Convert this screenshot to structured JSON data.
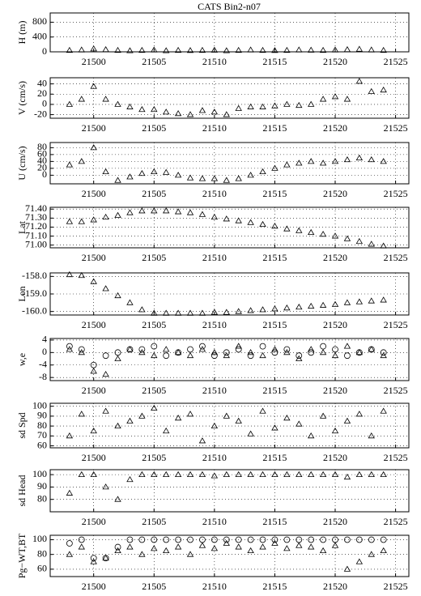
{
  "title": "CATS Bin2-n07",
  "chart_data": [
    {
      "type": "scatter",
      "ylabel": "H (m)",
      "xlim": [
        21496.4,
        21526.1
      ],
      "xticks": [
        21500,
        21505,
        21510,
        21515,
        21520,
        21525
      ],
      "ylim": [
        0,
        1050
      ],
      "yticks": [
        0,
        400,
        800
      ],
      "grid": true,
      "x": [
        21498,
        21499,
        21500,
        21501,
        21502,
        21503,
        21504,
        21505,
        21506,
        21507,
        21508,
        21509,
        21510,
        21511,
        21512,
        21513,
        21514,
        21515,
        21516,
        21517,
        21518,
        21519,
        21520,
        21521,
        21522,
        21523,
        21524
      ],
      "series": [
        {
          "marker": "triangle",
          "color": "#000000",
          "values": [
            40,
            50,
            80,
            60,
            40,
            30,
            40,
            50,
            30,
            40,
            35,
            40,
            45,
            30,
            40,
            50,
            40,
            35,
            40,
            50,
            45,
            40,
            50,
            60,
            70,
            50,
            40
          ]
        }
      ]
    },
    {
      "type": "scatter",
      "ylabel": "V (cm/s)",
      "xlim": [
        21496.4,
        21526.1
      ],
      "xticks": [
        21500,
        21505,
        21510,
        21515,
        21520,
        21525
      ],
      "ylim": [
        -27,
        52
      ],
      "yticks": [
        -20,
        0,
        20,
        40
      ],
      "grid": true,
      "x": [
        21498,
        21499,
        21500,
        21501,
        21502,
        21503,
        21504,
        21505,
        21506,
        21507,
        21508,
        21509,
        21510,
        21511,
        21512,
        21513,
        21514,
        21515,
        21516,
        21517,
        21518,
        21519,
        21520,
        21521,
        21522,
        21523,
        21524
      ],
      "series": [
        {
          "marker": "triangle",
          "color": "#000000",
          "values": [
            0,
            10,
            35,
            10,
            0,
            -5,
            -10,
            -10,
            -15,
            -18,
            -20,
            -12,
            -15,
            -20,
            -8,
            -5,
            -5,
            -3,
            0,
            -2,
            0,
            10,
            15,
            10,
            45,
            25,
            28
          ]
        }
      ]
    },
    {
      "type": "scatter",
      "ylabel": "U (cm/s)",
      "xlim": [
        21496.4,
        21526.1
      ],
      "xticks": [
        21500,
        21505,
        21510,
        21515,
        21520,
        21525
      ],
      "ylim": [
        -25,
        95
      ],
      "yticks": [
        0,
        20,
        40,
        60,
        80
      ],
      "grid": true,
      "x": [
        21498,
        21499,
        21500,
        21501,
        21502,
        21503,
        21504,
        21505,
        21506,
        21507,
        21508,
        21509,
        21510,
        21511,
        21512,
        21513,
        21514,
        21515,
        21516,
        21517,
        21518,
        21519,
        21520,
        21521,
        21522,
        21523,
        21524
      ],
      "series": [
        {
          "marker": "triangle",
          "color": "#000000",
          "values": [
            30,
            40,
            80,
            10,
            -15,
            -5,
            5,
            10,
            8,
            0,
            -8,
            -10,
            -10,
            -15,
            -10,
            0,
            10,
            20,
            30,
            35,
            40,
            35,
            40,
            45,
            50,
            45,
            40
          ]
        }
      ]
    },
    {
      "type": "scatter",
      "ylabel": "Lat",
      "xlim": [
        21496.4,
        21526.1
      ],
      "xticks": [
        21500,
        21505,
        21510,
        21515,
        21520,
        21525
      ],
      "ylim": [
        70.97,
        71.42
      ],
      "yticks": [
        {
          "value": 71,
          "label": "71.00"
        },
        {
          "value": 71.1,
          "label": "71.10"
        },
        {
          "value": 71.2,
          "label": "71.20"
        },
        {
          "value": 71.3,
          "label": "71.30"
        },
        {
          "value": 71.4,
          "label": "71.40"
        }
      ],
      "grid": true,
      "x": [
        21498,
        21499,
        21500,
        21501,
        21502,
        21503,
        21504,
        21505,
        21506,
        21507,
        21508,
        21509,
        21510,
        21511,
        21512,
        21513,
        21514,
        21515,
        21516,
        21517,
        21518,
        21519,
        21520,
        21521,
        21522,
        21523,
        21524
      ],
      "series": [
        {
          "marker": "triangle",
          "color": "#000000",
          "values": [
            71.26,
            71.26,
            71.28,
            71.31,
            71.33,
            71.36,
            71.38,
            71.38,
            71.38,
            71.37,
            71.36,
            71.34,
            71.31,
            71.29,
            71.27,
            71.25,
            71.23,
            71.21,
            71.18,
            71.16,
            71.14,
            71.12,
            71.1,
            71.07,
            71.04,
            71.01,
            70.99
          ]
        }
      ]
    },
    {
      "type": "scatter",
      "ylabel": "Lon",
      "xlim": [
        21496.4,
        21526.1
      ],
      "xticks": [
        21500,
        21505,
        21510,
        21515,
        21520,
        21525
      ],
      "ylim": [
        -160.2,
        -157.8
      ],
      "yticks": [
        {
          "value": -160,
          "label": "-160.0"
        },
        {
          "value": -159,
          "label": "-159.0"
        },
        {
          "value": -158,
          "label": "-158.0"
        }
      ],
      "grid": true,
      "x": [
        21498,
        21499,
        21500,
        21501,
        21502,
        21503,
        21504,
        21505,
        21506,
        21507,
        21508,
        21509,
        21510,
        21511,
        21512,
        21513,
        21514,
        21515,
        21516,
        21517,
        21518,
        21519,
        21520,
        21521,
        21522,
        21523,
        21524
      ],
      "series": [
        {
          "marker": "triangle",
          "color": "#000000",
          "values": [
            -157.9,
            -157.95,
            -158.3,
            -158.7,
            -159.1,
            -159.5,
            -159.9,
            -160.1,
            -160.1,
            -160.1,
            -160.1,
            -160.1,
            -160.05,
            -160.05,
            -160,
            -159.95,
            -159.9,
            -159.85,
            -159.8,
            -159.75,
            -159.7,
            -159.65,
            -159.6,
            -159.5,
            -159.45,
            -159.4,
            -159.35
          ]
        }
      ]
    },
    {
      "type": "scatter",
      "ylabel": "w,e",
      "xlim": [
        21496.4,
        21526.1
      ],
      "xticks": [
        21500,
        21505,
        21510,
        21515,
        21520,
        21525
      ],
      "ylim": [
        -9,
        4.5
      ],
      "yticks": [
        -8,
        -4,
        0,
        4
      ],
      "grid": true,
      "x": [
        21498,
        21499,
        21500,
        21501,
        21502,
        21503,
        21504,
        21505,
        21506,
        21507,
        21508,
        21509,
        21510,
        21511,
        21512,
        21513,
        21514,
        21515,
        21516,
        21517,
        21518,
        21519,
        21520,
        21521,
        21522,
        21523,
        21524
      ],
      "series": [
        {
          "marker": "triangle",
          "color": "#000000",
          "values": [
            1,
            0,
            -6,
            -7,
            -2,
            1,
            0,
            -1,
            1,
            0,
            -1,
            1,
            0,
            -1,
            2,
            0,
            -1,
            1,
            0,
            -2,
            1,
            0,
            -1,
            2,
            0,
            1,
            -1
          ]
        },
        {
          "marker": "circle",
          "color": "#000000",
          "values": [
            2,
            1,
            -4,
            -1,
            0,
            1,
            1,
            2,
            -1,
            0,
            1,
            2,
            -1,
            0,
            1,
            -1,
            2,
            0,
            1,
            -1,
            0,
            2,
            1,
            -1,
            0,
            1,
            0
          ]
        }
      ]
    },
    {
      "type": "scatter",
      "ylabel": "sd Spd",
      "xlim": [
        21496.4,
        21526.1
      ],
      "xticks": [
        21500,
        21505,
        21510,
        21515,
        21520,
        21525
      ],
      "ylim": [
        58,
        103
      ],
      "yticks": [
        60,
        70,
        80,
        90,
        100
      ],
      "grid": true,
      "x": [
        21498,
        21499,
        21500,
        21501,
        21502,
        21503,
        21504,
        21505,
        21506,
        21507,
        21508,
        21509,
        21510,
        21511,
        21512,
        21513,
        21514,
        21515,
        21516,
        21517,
        21518,
        21519,
        21520,
        21521,
        21522,
        21523,
        21524
      ],
      "series": [
        {
          "marker": "triangle",
          "color": "#000000",
          "values": [
            70,
            92,
            75,
            95,
            80,
            85,
            90,
            98,
            75,
            88,
            92,
            65,
            80,
            90,
            85,
            72,
            95,
            78,
            88,
            82,
            70,
            90,
            75,
            85,
            92,
            70,
            95
          ]
        }
      ]
    },
    {
      "type": "scatter",
      "ylabel": "sd Head",
      "xlim": [
        21496.4,
        21526.1
      ],
      "xticks": [
        21500,
        21505,
        21510,
        21515,
        21520,
        21525
      ],
      "ylim": [
        70,
        104
      ],
      "yticks": [
        80,
        90,
        100
      ],
      "grid": true,
      "x": [
        21498,
        21499,
        21500,
        21501,
        21502,
        21503,
        21504,
        21505,
        21506,
        21507,
        21508,
        21509,
        21510,
        21511,
        21512,
        21513,
        21514,
        21515,
        21516,
        21517,
        21518,
        21519,
        21520,
        21521,
        21522,
        21523,
        21524
      ],
      "series": [
        {
          "marker": "triangle",
          "color": "#000000",
          "values": [
            85,
            100,
            100,
            90,
            80,
            96,
            100,
            100,
            100,
            100,
            100,
            100,
            99,
            100,
            100,
            100,
            100,
            100,
            100,
            100,
            100,
            100,
            100,
            98,
            100,
            100,
            100
          ]
        }
      ]
    },
    {
      "type": "scatter",
      "ylabel": "Pg−WT,BT",
      "xlim": [
        21496.4,
        21526.1
      ],
      "xticks": [
        21500,
        21505,
        21510,
        21515,
        21520,
        21525
      ],
      "ylim": [
        50,
        106
      ],
      "yticks": [
        60,
        80,
        100
      ],
      "grid": true,
      "x": [
        21498,
        21499,
        21500,
        21501,
        21502,
        21503,
        21504,
        21505,
        21506,
        21507,
        21508,
        21509,
        21510,
        21511,
        21512,
        21513,
        21514,
        21515,
        21516,
        21517,
        21518,
        21519,
        21520,
        21521,
        21522,
        21523,
        21524
      ],
      "series": [
        {
          "marker": "circle",
          "color": "#000000",
          "values": [
            95,
            100,
            75,
            75,
            90,
            100,
            100,
            100,
            100,
            100,
            100,
            100,
            100,
            100,
            100,
            100,
            100,
            100,
            100,
            100,
            100,
            100,
            100,
            100,
            100,
            100,
            100
          ]
        },
        {
          "marker": "triangle",
          "color": "#000000",
          "values": [
            80,
            90,
            70,
            75,
            85,
            90,
            80,
            88,
            85,
            90,
            80,
            92,
            88,
            95,
            90,
            85,
            90,
            95,
            88,
            92,
            90,
            85,
            92,
            60,
            70,
            80,
            85
          ]
        }
      ]
    }
  ]
}
